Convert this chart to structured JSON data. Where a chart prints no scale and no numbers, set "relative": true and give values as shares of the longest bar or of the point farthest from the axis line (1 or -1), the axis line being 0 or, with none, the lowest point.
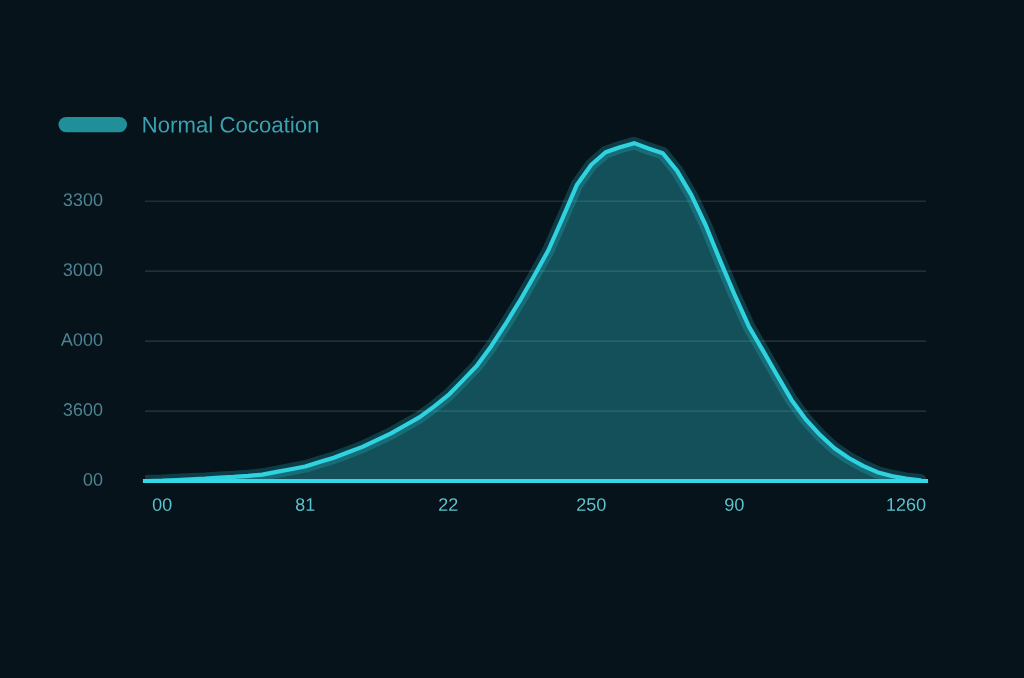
{
  "chart_data": {
    "type": "area",
    "relative": true,
    "categories": [
      null,
      "00",
      null,
      null,
      null,
      null,
      null,
      null,
      null,
      null,
      null,
      "81",
      null,
      null,
      null,
      null,
      null,
      null,
      null,
      null,
      null,
      "22",
      null,
      null,
      null,
      null,
      null,
      null,
      null,
      null,
      null,
      "250",
      null,
      null,
      null,
      null,
      null,
      null,
      null,
      null,
      null,
      "90",
      null,
      null,
      null,
      null,
      null,
      null,
      null,
      null,
      null,
      null,
      null,
      "1260",
      null
    ],
    "series": [
      {
        "name": "Normal Cocoation",
        "color": "#2fd3df",
        "values": [
          0,
          0.001,
          0.003,
          0.005,
          0.007,
          0.01,
          0.012,
          0.015,
          0.019,
          0.027,
          0.035,
          0.043,
          0.056,
          0.069,
          0.085,
          0.101,
          0.121,
          0.141,
          0.165,
          0.189,
          0.22,
          0.254,
          0.297,
          0.341,
          0.399,
          0.464,
          0.533,
          0.607,
          0.683,
          0.779,
          0.877,
          0.936,
          0.973,
          0.988,
          1,
          0.984,
          0.97,
          0.918,
          0.846,
          0.757,
          0.653,
          0.553,
          0.459,
          0.386,
          0.312,
          0.24,
          0.182,
          0.136,
          0.097,
          0.068,
          0.045,
          0.026,
          0.015,
          0.007,
          0.002
        ]
      }
    ],
    "annotations": [
      "00",
      "3600",
      "A000",
      "3000",
      "3300"
    ],
    "grid": "y",
    "legend": "top left"
  }
}
